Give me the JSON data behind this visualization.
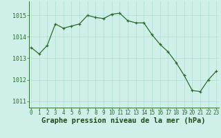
{
  "x": [
    0,
    1,
    2,
    3,
    4,
    5,
    6,
    7,
    8,
    9,
    10,
    11,
    12,
    13,
    14,
    15,
    16,
    17,
    18,
    19,
    20,
    21,
    22,
    23
  ],
  "y": [
    1013.5,
    1013.2,
    1013.6,
    1014.6,
    1014.4,
    1014.5,
    1014.6,
    1015.0,
    1014.9,
    1014.85,
    1015.05,
    1015.1,
    1014.75,
    1014.65,
    1014.65,
    1014.1,
    1013.65,
    1013.3,
    1012.8,
    1012.2,
    1011.5,
    1011.45,
    1012.0,
    1012.4
  ],
  "line_color": "#2d6a2d",
  "marker": "+",
  "bg_color": "#cef0e8",
  "grid_color": "#b0ddd4",
  "xlabel": "Graphe pression niveau de la mer (hPa)",
  "xlabel_color": "#1a4a1a",
  "yticks": [
    1011,
    1012,
    1013,
    1014,
    1015
  ],
  "xticks": [
    0,
    1,
    2,
    3,
    4,
    5,
    6,
    7,
    8,
    9,
    10,
    11,
    12,
    13,
    14,
    15,
    16,
    17,
    18,
    19,
    20,
    21,
    22,
    23
  ],
  "ylim": [
    1010.7,
    1015.65
  ],
  "xlim": [
    -0.3,
    23.3
  ],
  "tick_color": "#2d6a2d",
  "ytick_fontsize": 6.0,
  "xtick_fontsize": 5.5,
  "xlabel_fontsize": 7.5,
  "linewidth": 0.9,
  "markersize": 3.5,
  "markeredgewidth": 0.9
}
